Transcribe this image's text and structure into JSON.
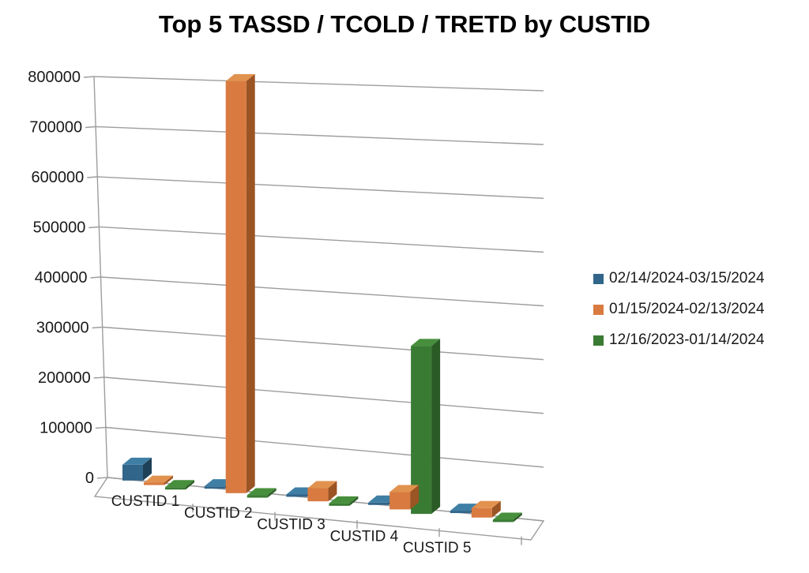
{
  "chart_data": {
    "type": "bar",
    "variant": "3d-clustered-column",
    "title": "Top 5 TASSD / TCOLD / TRETD by CUSTID",
    "categories": [
      "CUSTID 1",
      "CUSTID 2",
      "CUSTID 3",
      "CUSTID 4",
      "CUSTID 5"
    ],
    "series": [
      {
        "name": "02/14/2024-03/15/2024",
        "color": "#31658A",
        "color_top": "#3F7FA6",
        "color_side": "#1F4157",
        "values": [
          30000,
          2000,
          1500,
          1800,
          1200
        ]
      },
      {
        "name": "01/15/2024-02/13/2024",
        "color": "#D97B41",
        "color_top": "#E2924F",
        "color_side": "#9B5423",
        "values": [
          2000,
          785000,
          25000,
          33000,
          18000
        ]
      },
      {
        "name": "12/16/2023-01/14/2024",
        "color": "#3A7B33",
        "color_top": "#478F3C",
        "color_side": "#2A5B25",
        "values": [
          1000,
          1500,
          1200,
          320000,
          900
        ]
      }
    ],
    "xlabel": "",
    "ylabel": "",
    "ylim": [
      0,
      800000
    ],
    "ytick_step": 100000,
    "ytick_labels": [
      "0",
      "100000",
      "200000",
      "300000",
      "400000",
      "500000",
      "600000",
      "700000",
      "800000"
    ],
    "grid": true,
    "legend_position": "right",
    "text_color": "#1a1a1a",
    "gridline_color": "#9D9D9D"
  }
}
